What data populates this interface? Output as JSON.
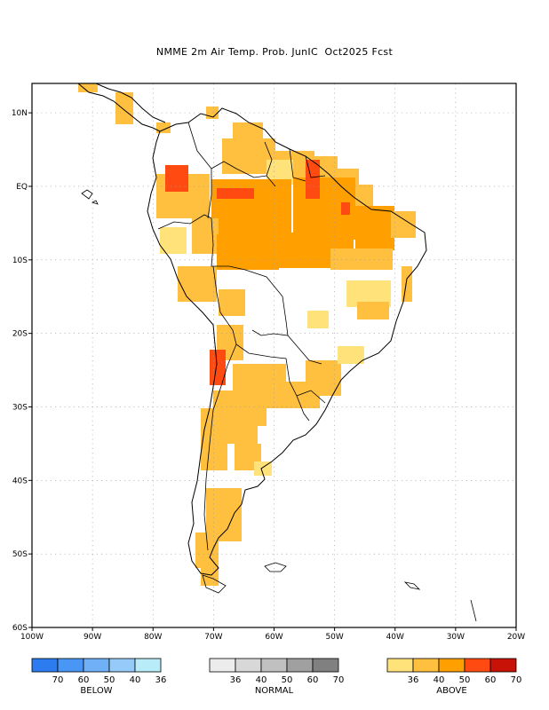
{
  "title": "NMME 2m Air Temp. Prob. JunIC  Oct2025 Fcst",
  "map": {
    "lon_range": [
      -100,
      -20
    ],
    "lat_range": [
      -60,
      14
    ],
    "x_ticks": [
      {
        "lon": -100,
        "label": "100W"
      },
      {
        "lon": -90,
        "label": "90W"
      },
      {
        "lon": -80,
        "label": "80W"
      },
      {
        "lon": -70,
        "label": "70W"
      },
      {
        "lon": -60,
        "label": "60W"
      },
      {
        "lon": -50,
        "label": "50W"
      },
      {
        "lon": -40,
        "label": "40W"
      },
      {
        "lon": -30,
        "label": "30W"
      },
      {
        "lon": -20,
        "label": "20W"
      }
    ],
    "y_ticks": [
      {
        "lat": 10,
        "label": "10N"
      },
      {
        "lat": 0,
        "label": "EQ"
      },
      {
        "lat": -10,
        "label": "10S"
      },
      {
        "lat": -20,
        "label": "20S"
      },
      {
        "lat": -30,
        "label": "30S"
      },
      {
        "lat": -40,
        "label": "40S"
      },
      {
        "lat": -50,
        "label": "50S"
      },
      {
        "lat": -60,
        "label": "60S"
      }
    ],
    "grid": true
  },
  "colors": {
    "land_outline": "#000000",
    "grid": "#9a9a9a",
    "above": [
      "#ffe27a",
      "#ffc040",
      "#ffa000",
      "#ff4b12",
      "#c81208"
    ],
    "normal": [
      "#ececec",
      "#d8d8d8",
      "#c0c0c0",
      "#a0a0a0",
      "#808080"
    ],
    "below": [
      "#2c7cf0",
      "#4a96f4",
      "#70b0f6",
      "#96caf8",
      "#b8ecf8"
    ]
  },
  "legend": {
    "below": {
      "title": "BELOW",
      "labels": [
        "70",
        "60",
        "50",
        "40",
        "36"
      ]
    },
    "normal": {
      "title": "NORMAL",
      "labels": [
        "36",
        "40",
        "50",
        "60",
        "70"
      ]
    },
    "above": {
      "title": "ABOVE",
      "labels": [
        "36",
        "40",
        "50",
        "60",
        "70"
      ]
    }
  }
}
